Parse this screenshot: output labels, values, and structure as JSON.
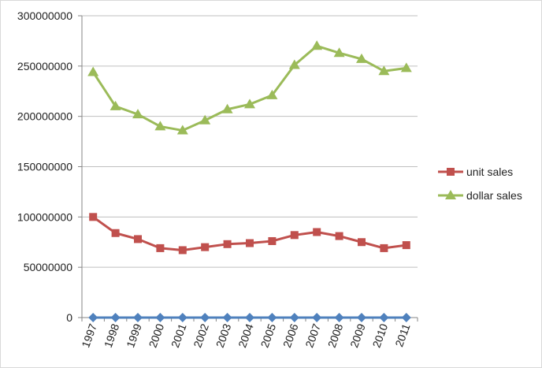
{
  "chart_data": {
    "type": "line",
    "title": "",
    "xlabel": "",
    "ylabel": "",
    "categories": [
      "1997",
      "1998",
      "1999",
      "2000",
      "2001",
      "2002",
      "2003",
      "2004",
      "2005",
      "2006",
      "2007",
      "2008",
      "2009",
      "2010",
      "2011"
    ],
    "ylim": [
      0,
      300000000
    ],
    "yticks": [
      0,
      50000000,
      100000000,
      150000000,
      200000000,
      250000000,
      300000000
    ],
    "ytick_labels": [
      "0",
      "50000000",
      "100000000",
      "150000000",
      "200000000",
      "250000000",
      "300000000"
    ],
    "grid": "horizontal",
    "legend_position": "right",
    "series": [
      {
        "name": "unit sales",
        "color": "#c0504d",
        "marker": "square",
        "in_legend": true,
        "values": [
          100000000,
          84000000,
          78000000,
          69000000,
          67000000,
          70000000,
          73000000,
          74000000,
          76000000,
          82000000,
          85000000,
          81000000,
          75000000,
          69000000,
          72000000
        ]
      },
      {
        "name": "dollar sales",
        "color": "#9bbb59",
        "marker": "triangle",
        "in_legend": true,
        "values": [
          244000000,
          210000000,
          202000000,
          190000000,
          186000000,
          196000000,
          207000000,
          212000000,
          221000000,
          251000000,
          270000000,
          263000000,
          257000000,
          245000000,
          248000000
        ]
      },
      {
        "color": "#4f81bd",
        "marker": "diamond",
        "in_legend": false,
        "values": [
          0,
          0,
          0,
          0,
          0,
          0,
          0,
          0,
          0,
          0,
          0,
          0,
          0,
          0,
          0
        ]
      }
    ]
  }
}
